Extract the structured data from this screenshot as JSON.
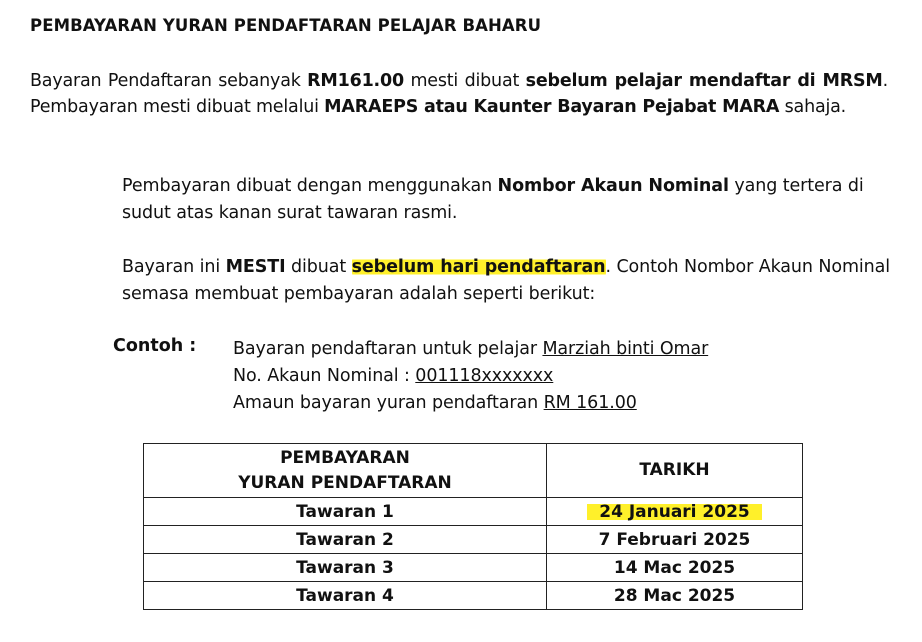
{
  "title": "PEMBAYARAN YURAN PENDAFTARAN PELAJAR BAHARU",
  "para1": {
    "t1": "Bayaran Pendaftaran sebanyak ",
    "b1": "RM161.00",
    "t2": " mesti dibuat ",
    "b2": "sebelum pelajar mendaftar di MRSM",
    "t3": ". Pembayaran mesti dibuat melalui ",
    "b3": "MARAEPS atau Kaunter Bayaran Pejabat MARA",
    "t4": " sahaja."
  },
  "para2": {
    "t1": "Pembayaran dibuat dengan menggunakan ",
    "b1": "Nombor Akaun Nominal",
    "t2": " yang tertera di sudut atas kanan surat tawaran rasmi."
  },
  "para3": {
    "t1": "Bayaran ini ",
    "b1": "MESTI",
    "t2": " dibuat ",
    "b2": "sebelum hari pendaftaran",
    "t3": ". Contoh Nombor Akaun Nominal semasa membuat pembayaran adalah seperti berikut:"
  },
  "example": {
    "label": "Contoh :",
    "line1_prefix": "Bayaran pendaftaran untuk pelajar ",
    "line1_value": "Marziah binti Omar",
    "line2_prefix": "No. Akaun Nominal : ",
    "line2_value": "001118xxxxxxx",
    "line3_prefix": "Amaun bayaran yuran pendaftaran ",
    "line3_value": "RM 161.00"
  },
  "table": {
    "headers": [
      "PEMBAYARAN",
      "YURAN PENDAFTARAN",
      "TARIKH"
    ],
    "rows": [
      [
        "Tawaran 1",
        "24 Januari 2025"
      ],
      [
        "Tawaran 2",
        "7 Februari 2025"
      ],
      [
        "Tawaran 3",
        "14 Mac 2025"
      ],
      [
        "Tawaran 4",
        "28 Mac 2025"
      ]
    ]
  },
  "colors": {
    "highlight": "#fff02a",
    "text": "#111111"
  }
}
